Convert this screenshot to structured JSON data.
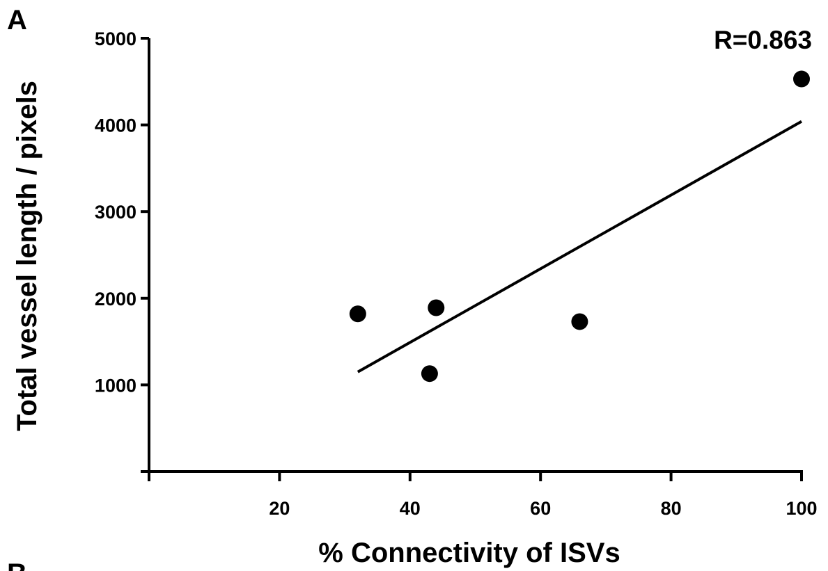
{
  "panel_labels": {
    "current": "A",
    "next": "B"
  },
  "chart_data": {
    "type": "scatter",
    "title": "",
    "xlabel": "% Connectivity of ISVs",
    "ylabel": "Total vessel length / pixels",
    "xlim": [
      0,
      100
    ],
    "ylim": [
      0,
      5000
    ],
    "x_ticks": [
      20,
      40,
      60,
      80,
      100
    ],
    "y_ticks": [
      1000,
      2000,
      3000,
      4000,
      5000
    ],
    "grid": false,
    "annotation": "R=0.863",
    "points": [
      {
        "x": 32,
        "y": 1820
      },
      {
        "x": 43,
        "y": 1130
      },
      {
        "x": 44,
        "y": 1890
      },
      {
        "x": 66,
        "y": 1730
      },
      {
        "x": 100,
        "y": 4530
      }
    ],
    "fit_line": {
      "x": [
        32,
        100
      ],
      "y": [
        1150,
        4040
      ]
    },
    "colors": {
      "marker": "#000000",
      "line": "#000000",
      "axis": "#000000"
    }
  }
}
